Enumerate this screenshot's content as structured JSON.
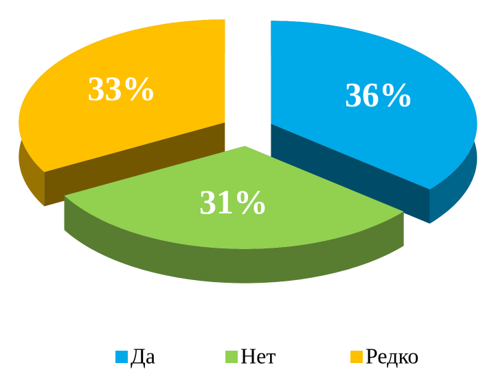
{
  "chart_data": {
    "type": "pie",
    "categories": [
      "Да",
      "Нет",
      "Редко"
    ],
    "values": [
      36,
      31,
      33
    ],
    "value_labels": [
      "36%",
      "31%",
      "33%"
    ],
    "colors": [
      "#00a9e8",
      "#92d050",
      "#ffc000"
    ],
    "legend": "bottom"
  }
}
